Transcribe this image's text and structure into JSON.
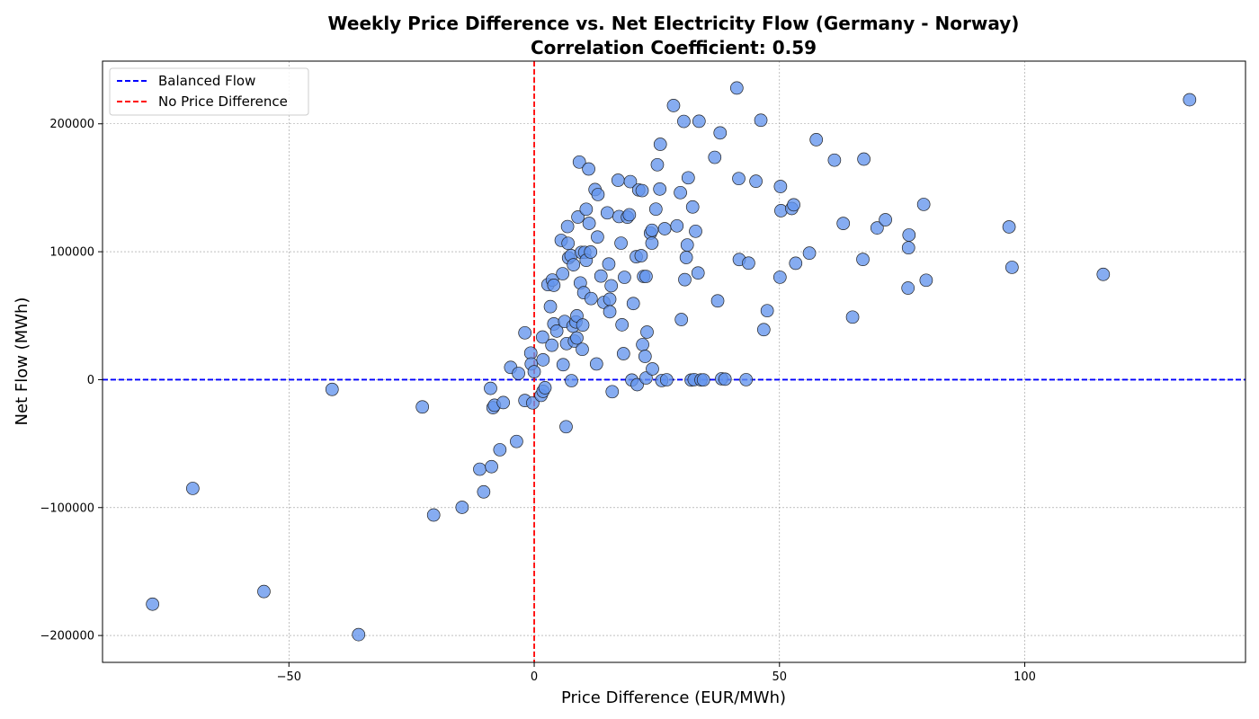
{
  "colors": {
    "point_fill": "#6495ED",
    "point_edge": "#222222",
    "balanced_line": "#0000FF",
    "no_diff_line": "#FF0000",
    "grid": "#999999"
  },
  "chart_data": {
    "type": "scatter",
    "title": "Weekly Price Difference vs. Net Electricity Flow (Germany - Norway)",
    "subtitle": "Correlation Coefficient: 0.59",
    "xlabel": "Price Difference (EUR/MWh)",
    "ylabel": "Net Flow (MWh)",
    "xlim": [
      -88,
      145
    ],
    "ylim": [
      -221000,
      249000
    ],
    "x_ticks": [
      -50,
      0,
      50,
      100
    ],
    "x_tick_labels": [
      "−50",
      "0",
      "50",
      "100"
    ],
    "y_ticks": [
      -200000,
      -100000,
      0,
      100000,
      200000
    ],
    "y_tick_labels": [
      "−200000",
      "−100000",
      "0",
      "100000",
      "200000"
    ],
    "grid": true,
    "legend_position": "top-left",
    "legend": [
      {
        "label": "Balanced Flow",
        "color": "#0000FF",
        "style": "dashed"
      },
      {
        "label": "No Price Difference",
        "color": "#FF0000",
        "style": "dashed"
      }
    ],
    "reference_lines": [
      {
        "name": "Balanced Flow",
        "orientation": "horizontal",
        "value": 0
      },
      {
        "name": "No Price Difference",
        "orientation": "vertical",
        "value": 0
      }
    ],
    "points": [
      [
        -77.8,
        -175500
      ],
      [
        -69.6,
        -85000
      ],
      [
        -55.1,
        -165600
      ],
      [
        -41.2,
        -7600
      ],
      [
        -35.8,
        -199300
      ],
      [
        -22.8,
        -21300
      ],
      [
        -20.5,
        -105800
      ],
      [
        -14.7,
        -99800
      ],
      [
        -11.1,
        -70000
      ],
      [
        -10.3,
        -87700
      ],
      [
        -8.9,
        -6800
      ],
      [
        -8.7,
        -68000
      ],
      [
        -8.4,
        -21900
      ],
      [
        -8.1,
        -20000
      ],
      [
        -7.0,
        -54800
      ],
      [
        -6.3,
        -17900
      ],
      [
        -4.8,
        9600
      ],
      [
        -3.6,
        -48300
      ],
      [
        -3.2,
        4900
      ],
      [
        -1.9,
        36600
      ],
      [
        -1.9,
        -16300
      ],
      [
        -0.7,
        20800
      ],
      [
        -0.6,
        12300
      ],
      [
        -0.3,
        -18200
      ],
      [
        0.0,
        6200
      ],
      [
        1.4,
        -12300
      ],
      [
        1.7,
        33300
      ],
      [
        1.8,
        15500
      ],
      [
        1.8,
        -9100
      ],
      [
        2.2,
        -6300
      ],
      [
        2.8,
        74300
      ],
      [
        3.3,
        57100
      ],
      [
        3.6,
        26900
      ],
      [
        3.7,
        77900
      ],
      [
        4.0,
        73800
      ],
      [
        4.0,
        43600
      ],
      [
        4.6,
        38000
      ],
      [
        5.5,
        108900
      ],
      [
        5.8,
        82800
      ],
      [
        5.9,
        11700
      ],
      [
        6.2,
        45500
      ],
      [
        6.5,
        -36800
      ],
      [
        6.6,
        28200
      ],
      [
        6.8,
        119700
      ],
      [
        6.9,
        106600
      ],
      [
        7.0,
        95200
      ],
      [
        7.5,
        97000
      ],
      [
        7.6,
        -800
      ],
      [
        7.9,
        41800
      ],
      [
        8.0,
        89800
      ],
      [
        8.2,
        30100
      ],
      [
        8.5,
        45100
      ],
      [
        8.7,
        32600
      ],
      [
        8.7,
        49900
      ],
      [
        8.9,
        127100
      ],
      [
        9.2,
        170100
      ],
      [
        9.4,
        75600
      ],
      [
        9.6,
        99500
      ],
      [
        9.8,
        23700
      ],
      [
        9.9,
        42700
      ],
      [
        10.1,
        68000
      ],
      [
        10.3,
        99500
      ],
      [
        10.6,
        93300
      ],
      [
        10.6,
        133200
      ],
      [
        11.1,
        164700
      ],
      [
        11.2,
        122200
      ],
      [
        11.5,
        99800
      ],
      [
        11.6,
        63400
      ],
      [
        12.4,
        148600
      ],
      [
        12.7,
        12300
      ],
      [
        12.9,
        111500
      ],
      [
        13.0,
        144700
      ],
      [
        13.6,
        81000
      ],
      [
        14.2,
        60400
      ],
      [
        14.9,
        130400
      ],
      [
        15.2,
        90400
      ],
      [
        15.4,
        62900
      ],
      [
        15.4,
        53100
      ],
      [
        15.7,
        73400
      ],
      [
        15.9,
        -9400
      ],
      [
        17.1,
        155900
      ],
      [
        17.3,
        127500
      ],
      [
        17.7,
        106700
      ],
      [
        17.9,
        42900
      ],
      [
        18.2,
        20300
      ],
      [
        18.4,
        80000
      ],
      [
        19.0,
        127000
      ],
      [
        19.4,
        128900
      ],
      [
        19.6,
        154800
      ],
      [
        19.9,
        -300
      ],
      [
        20.2,
        59500
      ],
      [
        20.8,
        96100
      ],
      [
        21.0,
        -3900
      ],
      [
        21.3,
        148300
      ],
      [
        21.8,
        96900
      ],
      [
        22.0,
        147800
      ],
      [
        22.1,
        27400
      ],
      [
        22.3,
        80700
      ],
      [
        22.6,
        18200
      ],
      [
        22.8,
        80700
      ],
      [
        22.8,
        1300
      ],
      [
        23.0,
        37200
      ],
      [
        23.7,
        114500
      ],
      [
        24.0,
        116800
      ],
      [
        24.0,
        106700
      ],
      [
        24.1,
        8400
      ],
      [
        24.8,
        133300
      ],
      [
        25.1,
        168000
      ],
      [
        25.6,
        149000
      ],
      [
        25.7,
        184000
      ],
      [
        26.0,
        -700
      ],
      [
        26.6,
        118000
      ],
      [
        27.0,
        -100
      ],
      [
        28.4,
        214300
      ],
      [
        29.1,
        120200
      ],
      [
        29.8,
        146200
      ],
      [
        30.0,
        47000
      ],
      [
        30.5,
        201900
      ],
      [
        30.7,
        78200
      ],
      [
        31.0,
        95500
      ],
      [
        31.2,
        105300
      ],
      [
        31.4,
        157800
      ],
      [
        32.0,
        -300
      ],
      [
        32.3,
        135000
      ],
      [
        32.6,
        0
      ],
      [
        32.9,
        116000
      ],
      [
        33.4,
        83400
      ],
      [
        33.6,
        202000
      ],
      [
        34.0,
        -200
      ],
      [
        34.5,
        -200
      ],
      [
        36.8,
        173800
      ],
      [
        37.4,
        61600
      ],
      [
        37.9,
        192900
      ],
      [
        38.2,
        700
      ],
      [
        38.9,
        400
      ],
      [
        41.3,
        228000
      ],
      [
        41.7,
        157200
      ],
      [
        41.8,
        93900
      ],
      [
        43.2,
        0
      ],
      [
        43.7,
        91100
      ],
      [
        45.2,
        155100
      ],
      [
        46.2,
        202800
      ],
      [
        46.8,
        39100
      ],
      [
        47.5,
        53900
      ],
      [
        50.1,
        80100
      ],
      [
        50.2,
        151000
      ],
      [
        50.3,
        132100
      ],
      [
        52.5,
        133800
      ],
      [
        52.9,
        136700
      ],
      [
        53.3,
        91000
      ],
      [
        56.1,
        98900
      ],
      [
        57.5,
        187600
      ],
      [
        61.2,
        171600
      ],
      [
        63.0,
        122100
      ],
      [
        64.9,
        48900
      ],
      [
        67.0,
        94000
      ],
      [
        67.2,
        172400
      ],
      [
        69.9,
        118600
      ],
      [
        71.6,
        125000
      ],
      [
        76.2,
        71600
      ],
      [
        76.3,
        103100
      ],
      [
        76.4,
        113100
      ],
      [
        79.4,
        137000
      ],
      [
        79.9,
        77700
      ],
      [
        96.8,
        119400
      ],
      [
        97.4,
        87800
      ],
      [
        116.0,
        82300
      ],
      [
        133.6,
        218800
      ]
    ]
  }
}
